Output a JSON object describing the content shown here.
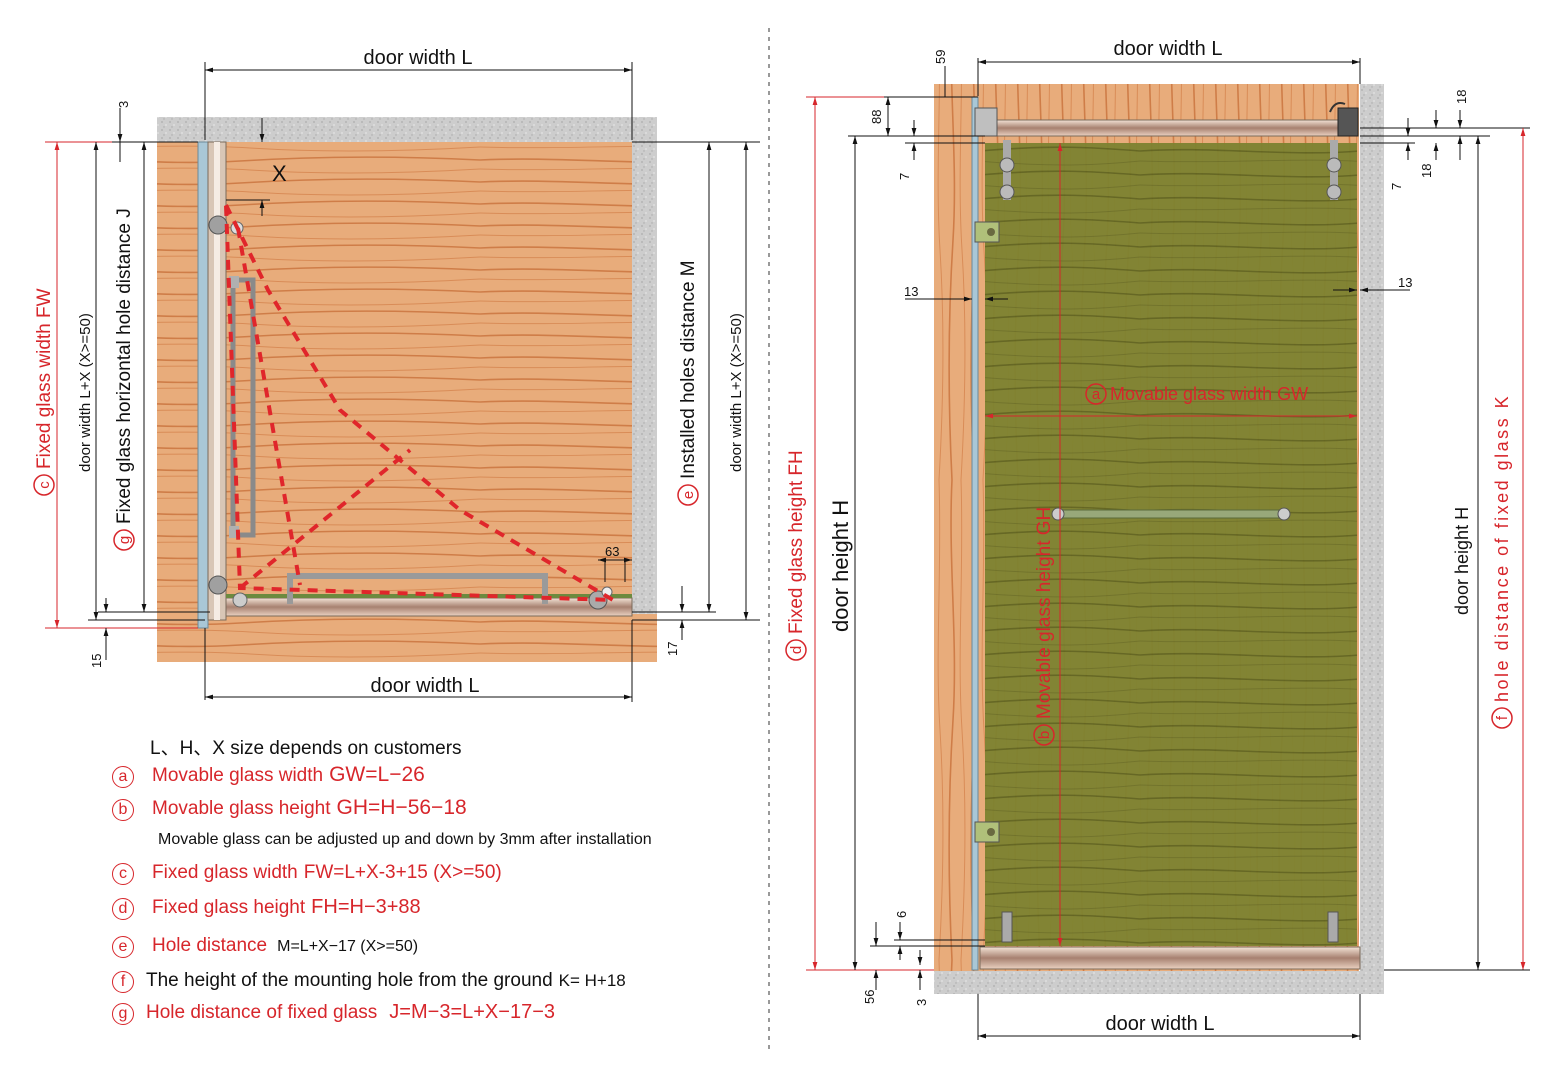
{
  "left_diagram": {
    "door_width_top": "door width L",
    "door_width_bottom": "door width L",
    "fixed_glass_width": "Fixed glass width  FW",
    "fixed_glass_width_marker": "c",
    "door_width_lx_left": "door width L+X (X>=50)",
    "fixed_glass_hole_distance": "Fixed glass horizontal hole distance  J",
    "fixed_glass_hole_distance_marker": "g",
    "installed_holes_distance": "Installed holes distance M",
    "installed_holes_distance_marker": "e",
    "door_width_lx_right": "door width L+X (X>=50)",
    "x_label": "X",
    "dim_3": "3",
    "dim_15": "15",
    "dim_17": "17",
    "dim_63": "63"
  },
  "right_diagram": {
    "door_width_top": "door width L",
    "door_width_bottom": "door width L",
    "movable_glass_width": "Movable glass width  GW",
    "movable_glass_width_marker": "a",
    "movable_glass_height": "Movable glass height  GH",
    "movable_glass_height_marker": "b",
    "fixed_glass_height": "Fixed glass height  FH",
    "fixed_glass_height_marker": "d",
    "door_height_left": "door  height  H",
    "door_height_right": "door height H",
    "hole_distance_fixed": "hole distance of fixed glass K",
    "hole_distance_fixed_marker": "f",
    "dim_59": "59",
    "dim_88": "88",
    "dim_7_left": "7",
    "dim_13_left": "13",
    "dim_13_right": "13",
    "dim_18_a": "18",
    "dim_18_b": "18",
    "dim_7_right": "7",
    "dim_6": "6",
    "dim_56": "56",
    "dim_3": "3"
  },
  "legend": {
    "intro": "L、H、X size depends on customers",
    "items": [
      {
        "marker": "a",
        "label": "Movable glass width",
        "formula": "GW=L−26"
      },
      {
        "marker": "b",
        "label": "Movable glass height",
        "formula": "GH=H−56−18"
      },
      {
        "marker": "c",
        "label": "Fixed glass width",
        "formula": "FW=L+X-3+15  (X>=50)"
      },
      {
        "marker": "d",
        "label": "Fixed glass height",
        "formula": "FH=H−3+88"
      },
      {
        "marker": "e",
        "label": "Hole distance",
        "formula": "M=L+X−17  (X>=50)"
      },
      {
        "marker": "f",
        "label": "The height of the mounting hole from the ground",
        "formula": "K=  H+18"
      },
      {
        "marker": "g",
        "label": "Hole distance of fixed glass",
        "formula": "J=M−3=L+X−17−3"
      }
    ],
    "adjust_note": "Movable glass can be adjusted up and down by 3mm after installation"
  },
  "colors": {
    "accent_red": "#d7262b",
    "wood": "#e6a978",
    "wood_grain": "#c9743f",
    "concrete": "#cfcfcf",
    "glass_green": "#7a7f2e"
  }
}
